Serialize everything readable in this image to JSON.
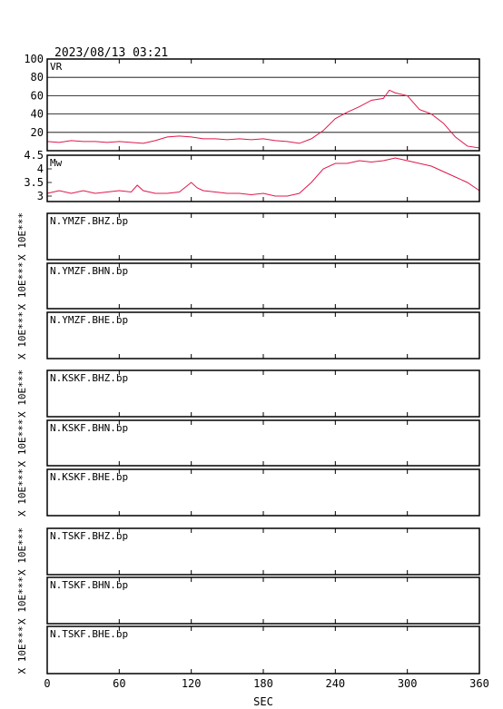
{
  "timestamp": "2023/08/13 03:21",
  "chart_data": [
    {
      "type": "line",
      "x": [
        0,
        10,
        20,
        30,
        40,
        50,
        60,
        70,
        80,
        90,
        100,
        110,
        120,
        130,
        140,
        150,
        160,
        170,
        180,
        190,
        200,
        210,
        220,
        230,
        240,
        250,
        260,
        270,
        280,
        285,
        290,
        300,
        310,
        320,
        330,
        340,
        350,
        360
      ],
      "series": [
        {
          "name": "VR",
          "color": "#e0184c",
          "values": [
            10,
            9,
            11,
            10,
            10,
            9,
            10,
            9,
            8,
            11,
            15,
            16,
            15,
            13,
            13,
            12,
            13,
            12,
            13,
            11,
            10,
            8,
            13,
            22,
            35,
            42,
            48,
            55,
            57,
            66,
            63,
            60,
            45,
            40,
            30,
            15,
            5,
            3
          ]
        }
      ],
      "xlim": [
        0,
        360
      ],
      "ylim": [
        0,
        100
      ],
      "yticks": [
        20,
        40,
        60,
        80,
        100
      ],
      "grid": true
    },
    {
      "type": "line",
      "x": [
        0,
        10,
        20,
        30,
        40,
        50,
        60,
        70,
        75,
        80,
        90,
        100,
        110,
        120,
        125,
        130,
        140,
        150,
        160,
        170,
        180,
        190,
        200,
        210,
        220,
        230,
        240,
        250,
        260,
        270,
        280,
        290,
        300,
        310,
        320,
        330,
        340,
        350,
        360
      ],
      "series": [
        {
          "name": "Mw",
          "color": "#e0184c",
          "values": [
            3.1,
            3.2,
            3.1,
            3.2,
            3.1,
            3.15,
            3.2,
            3.15,
            3.4,
            3.2,
            3.1,
            3.1,
            3.15,
            3.5,
            3.3,
            3.2,
            3.15,
            3.1,
            3.1,
            3.05,
            3.1,
            3.0,
            3.0,
            3.1,
            3.5,
            4.0,
            4.2,
            4.2,
            4.3,
            4.25,
            4.3,
            4.4,
            4.3,
            4.2,
            4.1,
            3.9,
            3.7,
            3.5,
            3.2
          ]
        }
      ],
      "xlim": [
        0,
        360
      ],
      "ylim": [
        2.8,
        4.5
      ],
      "yticks": [
        3.0,
        3.5,
        4.0,
        4.5
      ],
      "grid": false
    }
  ],
  "time_axis": {
    "xlim": [
      0,
      360
    ],
    "xticks": [
      0,
      60,
      120,
      180,
      240,
      300,
      360
    ],
    "label": "SEC"
  },
  "panels": [
    {
      "label": "N.YMZF.BHZ.bp",
      "scale_label": "X 10E***"
    },
    {
      "label": "N.YMZF.BHN.bp",
      "scale_label": "X 10E***"
    },
    {
      "label": "N.YMZF.BHE.bp",
      "scale_label": "X 10E***"
    },
    {
      "label": "N.KSKF.BHZ.bp",
      "scale_label": "X 10E***"
    },
    {
      "label": "N.KSKF.BHN.bp",
      "scale_label": "X 10E***"
    },
    {
      "label": "N.KSKF.BHE.bp",
      "scale_label": "X 10E***"
    },
    {
      "label": "N.TSKF.BHZ.bp",
      "scale_label": "X 10E***"
    },
    {
      "label": "N.TSKF.BHN.bp",
      "scale_label": "X 10E***"
    },
    {
      "label": "N.TSKF.BHE.bp",
      "scale_label": "X 10E***"
    }
  ]
}
